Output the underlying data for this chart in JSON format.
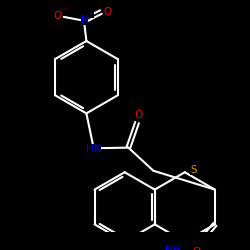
{
  "background_color": "#000000",
  "bond_color": "#ffffff",
  "bond_width": 1.5,
  "figsize": [
    2.5,
    2.5
  ],
  "dpi": 100,
  "colors": {
    "N": "#0000ff",
    "O": "#ff0000",
    "O_neg": "#ff0000",
    "S": "#c8a000",
    "C": "#ffffff"
  }
}
